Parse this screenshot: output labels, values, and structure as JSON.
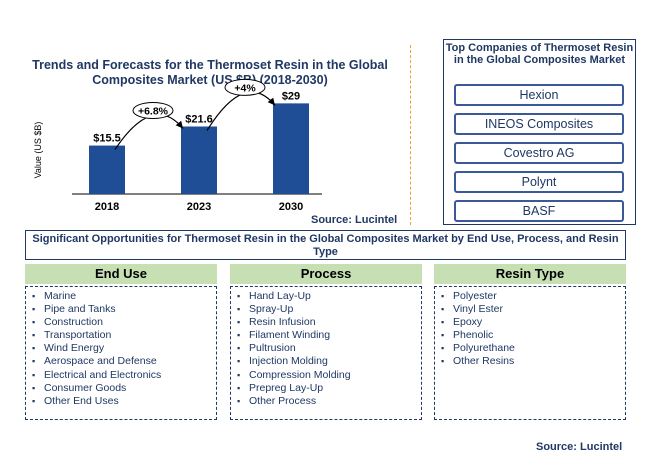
{
  "chart_data": {
    "type": "bar",
    "title": "Trends and Forecasts for the Thermoset Resin in the Global Composites Market (US $B) (2018-2030)",
    "xlabel": "",
    "ylabel": "Value (US $B)",
    "categories": [
      "2018",
      "2023",
      "2030"
    ],
    "values": [
      15.5,
      21.6,
      29
    ],
    "data_labels": [
      "$15.5",
      "$21.6",
      "$29"
    ],
    "annotations": [
      "+6.8%",
      "+4%"
    ],
    "ylim": [
      0,
      32
    ],
    "bar_color": "#1f4e96",
    "source": "Source: Lucintel"
  },
  "companies": {
    "title": "Top Companies of Thermoset Resin in the Global Composites Market",
    "items": [
      "Hexion",
      "INEOS Composites",
      "Covestro AG",
      "Polynt",
      "BASF"
    ]
  },
  "opportunities": {
    "title": "Significant Opportunities for Thermoset Resin in the Global Composites Market by End Use, Process, and Resin Type",
    "columns": [
      {
        "header": "End Use",
        "items": [
          "Marine",
          "Pipe and Tanks",
          "Construction",
          "Transportation",
          "Wind Energy",
          "Aerospace and Defense",
          "Electrical and Electronics",
          "Consumer Goods",
          "Other End Uses"
        ]
      },
      {
        "header": "Process",
        "items": [
          "Hand Lay-Up",
          "Spray-Up",
          "Resin Infusion",
          "Filament Winding",
          "Pultrusion",
          "Injection Molding",
          "Compression Molding",
          "Prepreg Lay-Up",
          "Other Process"
        ]
      },
      {
        "header": "Resin Type",
        "items": [
          "Polyester",
          "Vinyl Ester",
          "Epoxy",
          "Phenolic",
          "Polyurethane",
          "Other Resins"
        ]
      }
    ],
    "source": "Source: Lucintel"
  }
}
